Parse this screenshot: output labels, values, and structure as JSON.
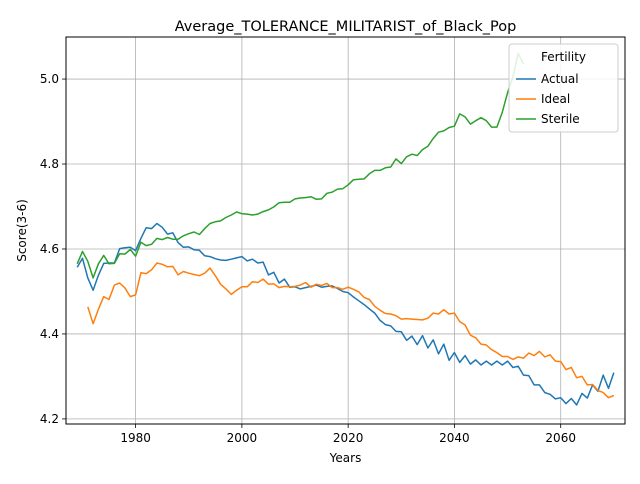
{
  "chart_data": {
    "type": "line",
    "title": "Average_TOLERANCE_MILITARIST_of_Black_Pop",
    "xlabel": "Years",
    "ylabel": "Score(3-6)",
    "xlim": [
      1966.9,
      2072.1
    ],
    "ylim": [
      4.188,
      5.099
    ],
    "xticks": [
      1980,
      2000,
      2020,
      2040,
      2060
    ],
    "yticks": [
      4.2,
      4.4,
      4.6,
      4.8,
      5.0
    ],
    "ytick_labels": [
      "4.2",
      "4.4",
      "4.6",
      "4.8",
      "5.0"
    ],
    "grid": true,
    "legend": {
      "title": "Fertility",
      "position": "top-right"
    },
    "series": [
      {
        "name": "Actual",
        "color": "#1f77b4",
        "x": [
          1969,
          1970,
          1971,
          1972,
          1973,
          1974,
          1975,
          1976,
          1977,
          1978,
          1979,
          1980,
          1981,
          1982,
          1983,
          1984,
          1985,
          1986,
          1987,
          1988,
          1989,
          1990,
          1991,
          1992,
          1993,
          1994,
          1995,
          1996,
          1997,
          1998,
          1999,
          2000,
          2001,
          2002,
          2003,
          2004,
          2005,
          2006,
          2007,
          2008,
          2009,
          2010,
          2011,
          2012,
          2013,
          2014,
          2015,
          2016,
          2017,
          2018,
          2019,
          2020,
          2021,
          2022,
          2023,
          2024,
          2025,
          2026,
          2027,
          2028,
          2029,
          2030,
          2031,
          2032,
          2033,
          2034,
          2035,
          2036,
          2037,
          2038,
          2039,
          2040,
          2041,
          2042,
          2043,
          2044,
          2045,
          2046,
          2047,
          2048,
          2049,
          2050,
          2051,
          2052,
          2053,
          2054,
          2055,
          2056,
          2057,
          2058,
          2059,
          2060,
          2061,
          2062,
          2063,
          2064,
          2065,
          2066,
          2067,
          2068,
          2069,
          2070
        ],
        "y": [
          4.557,
          4.578,
          4.532,
          4.503,
          4.538,
          4.566,
          4.567,
          4.567,
          4.601,
          4.603,
          4.604,
          4.596,
          4.625,
          4.65,
          4.648,
          4.66,
          4.651,
          4.635,
          4.638,
          4.615,
          4.604,
          4.605,
          4.598,
          4.597,
          4.584,
          4.582,
          4.577,
          4.574,
          4.573,
          4.576,
          4.579,
          4.582,
          4.572,
          4.576,
          4.567,
          4.569,
          4.539,
          4.545,
          4.52,
          4.529,
          4.51,
          4.511,
          4.506,
          4.509,
          4.512,
          4.515,
          4.51,
          4.512,
          4.513,
          4.507,
          4.5,
          4.497,
          4.487,
          4.478,
          4.469,
          4.459,
          4.449,
          4.432,
          4.422,
          4.419,
          4.406,
          4.405,
          4.385,
          4.395,
          4.375,
          4.396,
          4.367,
          4.386,
          4.353,
          4.376,
          4.338,
          4.356,
          4.333,
          4.349,
          4.329,
          4.339,
          4.327,
          4.336,
          4.327,
          4.336,
          4.327,
          4.336,
          4.321,
          4.324,
          4.303,
          4.302,
          4.28,
          4.28,
          4.262,
          4.258,
          4.247,
          4.25,
          4.236,
          4.248,
          4.233,
          4.26,
          4.249,
          4.28,
          4.265,
          4.303,
          4.272,
          4.309
        ]
      },
      {
        "name": "Ideal",
        "color": "#ff7f0e",
        "x": [
          1971,
          1972,
          1973,
          1974,
          1975,
          1976,
          1977,
          1978,
          1979,
          1980,
          1981,
          1982,
          1983,
          1984,
          1985,
          1986,
          1987,
          1988,
          1989,
          1990,
          1991,
          1992,
          1993,
          1994,
          1995,
          1996,
          1997,
          1998,
          1999,
          2000,
          2001,
          2002,
          2003,
          2004,
          2005,
          2006,
          2007,
          2008,
          2009,
          2010,
          2011,
          2012,
          2013,
          2014,
          2015,
          2016,
          2017,
          2018,
          2019,
          2020,
          2021,
          2022,
          2023,
          2024,
          2025,
          2026,
          2027,
          2028,
          2029,
          2030,
          2031,
          2032,
          2033,
          2034,
          2035,
          2036,
          2037,
          2038,
          2039,
          2040,
          2041,
          2042,
          2043,
          2044,
          2045,
          2046,
          2047,
          2048,
          2049,
          2050,
          2051,
          2052,
          2053,
          2054,
          2055,
          2056,
          2057,
          2058,
          2059,
          2060,
          2061,
          2062,
          2063,
          2064,
          2065,
          2066,
          2067,
          2068,
          2069,
          2070
        ],
        "y": [
          4.464,
          4.424,
          4.458,
          4.488,
          4.481,
          4.515,
          4.52,
          4.508,
          4.488,
          4.492,
          4.544,
          4.542,
          4.551,
          4.567,
          4.564,
          4.558,
          4.559,
          4.539,
          4.547,
          4.543,
          4.54,
          4.537,
          4.543,
          4.555,
          4.537,
          4.517,
          4.506,
          4.493,
          4.503,
          4.511,
          4.511,
          4.523,
          4.521,
          4.529,
          4.517,
          4.518,
          4.509,
          4.512,
          4.511,
          4.512,
          4.515,
          4.521,
          4.51,
          4.517,
          4.514,
          4.519,
          4.509,
          4.509,
          4.505,
          4.51,
          4.505,
          4.499,
          4.486,
          4.481,
          4.465,
          4.456,
          4.448,
          4.447,
          4.443,
          4.435,
          4.436,
          4.435,
          4.434,
          4.433,
          4.437,
          4.449,
          4.447,
          4.457,
          4.447,
          4.449,
          4.429,
          4.421,
          4.397,
          4.391,
          4.376,
          4.374,
          4.363,
          4.356,
          4.347,
          4.347,
          4.34,
          4.346,
          4.343,
          4.355,
          4.349,
          4.359,
          4.346,
          4.351,
          4.336,
          4.335,
          4.316,
          4.321,
          4.297,
          4.3,
          4.28,
          4.281,
          4.267,
          4.262,
          4.25,
          4.255
        ]
      },
      {
        "name": "Sterile",
        "color": "#2ca02c",
        "x": [
          1969,
          1970,
          1971,
          1972,
          1973,
          1974,
          1975,
          1976,
          1977,
          1978,
          1979,
          1980,
          1981,
          1982,
          1983,
          1984,
          1985,
          1986,
          1987,
          1988,
          1989,
          1990,
          1991,
          1992,
          1993,
          1994,
          1995,
          1996,
          1997,
          1998,
          1999,
          2000,
          2001,
          2002,
          2003,
          2004,
          2005,
          2006,
          2007,
          2008,
          2009,
          2010,
          2011,
          2012,
          2013,
          2014,
          2015,
          2016,
          2017,
          2018,
          2019,
          2020,
          2021,
          2022,
          2023,
          2024,
          2025,
          2026,
          2027,
          2028,
          2029,
          2030,
          2031,
          2032,
          2033,
          2034,
          2035,
          2036,
          2037,
          2038,
          2039,
          2040,
          2041,
          2042,
          2043,
          2044,
          2045,
          2046,
          2047,
          2048,
          2049,
          2050,
          2051,
          2052,
          2053
        ],
        "y": [
          4.565,
          4.594,
          4.571,
          4.532,
          4.565,
          4.585,
          4.565,
          4.566,
          4.589,
          4.588,
          4.599,
          4.583,
          4.616,
          4.608,
          4.611,
          4.625,
          4.622,
          4.627,
          4.623,
          4.623,
          4.631,
          4.636,
          4.64,
          4.634,
          4.648,
          4.66,
          4.664,
          4.666,
          4.674,
          4.68,
          4.687,
          4.683,
          4.682,
          4.68,
          4.682,
          4.688,
          4.692,
          4.699,
          4.709,
          4.71,
          4.71,
          4.718,
          4.72,
          4.721,
          4.723,
          4.717,
          4.718,
          4.731,
          4.734,
          4.741,
          4.742,
          4.751,
          4.763,
          4.764,
          4.765,
          4.777,
          4.785,
          4.785,
          4.791,
          4.793,
          4.812,
          4.801,
          4.817,
          4.823,
          4.82,
          4.834,
          4.842,
          4.86,
          4.875,
          4.878,
          4.886,
          4.889,
          4.918,
          4.911,
          4.894,
          4.902,
          4.909,
          4.902,
          4.887,
          4.887,
          4.922,
          4.968,
          5.005,
          5.06,
          5.035
        ]
      }
    ]
  }
}
